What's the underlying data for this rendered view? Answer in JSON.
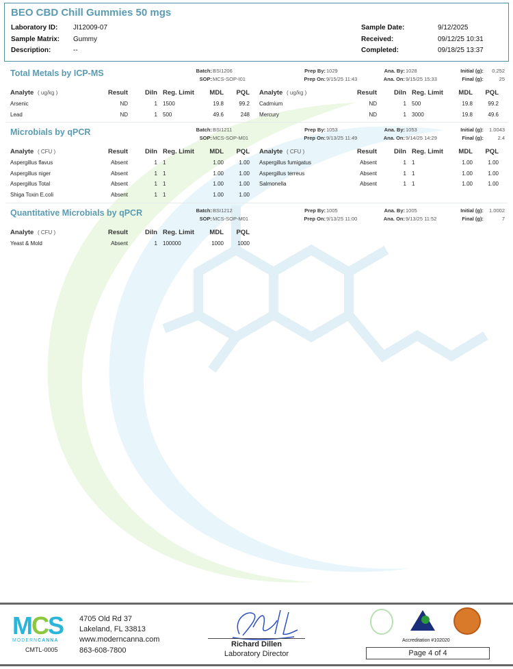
{
  "header": {
    "title": "BEO CBD Chill Gummies 50 mgs",
    "left": [
      {
        "label": "Laboratory ID:",
        "value": "JI12009-07"
      },
      {
        "label": "Sample Matrix:",
        "value": "Gummy"
      },
      {
        "label": "Description:",
        "value": "--"
      }
    ],
    "right": [
      {
        "label": "Sample Date:",
        "value": "9/12/2025"
      },
      {
        "label": "Received:",
        "value": "09/12/25 10:31"
      },
      {
        "label": "Completed:",
        "value": "09/18/25 13:37"
      }
    ]
  },
  "columns": {
    "analyte": "Analyte",
    "result": "Result",
    "diln": "Diln",
    "reg": "Reg. Limit",
    "mdl": "MDL",
    "pql": "PQL"
  },
  "meta_labels": {
    "batch": "Batch:",
    "sop": "SOP:",
    "prep_by": "Prep By:",
    "prep_on": "Prep On:",
    "ana_by": "Ana. By:",
    "ana_on": "Ana. On:",
    "initial": "Initial (g):",
    "final": "Final (g):"
  },
  "sections": [
    {
      "title": "Total Metals by ICP-MS",
      "unit": "( ug/kg )",
      "batch": "BSI1206",
      "sop": "MCS-SOP-I01",
      "prep_by": "1029",
      "prep_on": "9/15/25  11:43",
      "ana_by": "1028",
      "ana_on": "9/15/25  15:33",
      "initial": "0.252",
      "final": "25",
      "two_col": true,
      "rows": [
        [
          "Arsenic",
          "ND",
          "1",
          "1500",
          "19.8",
          "99.2"
        ],
        [
          "Lead",
          "ND",
          "1",
          "500",
          "49.6",
          "248"
        ],
        [
          "Cadmium",
          "ND",
          "1",
          "500",
          "19.8",
          "99.2"
        ],
        [
          "Mercury",
          "ND",
          "1",
          "3000",
          "19.8",
          "49.6"
        ]
      ],
      "left_count": 2
    },
    {
      "title": "Microbials by qPCR",
      "unit": "( CFU )",
      "batch": "BSI1211",
      "sop": "MCS-SOP-M01",
      "prep_by": "1053",
      "prep_on": "9/13/25  11:49",
      "ana_by": "1053",
      "ana_on": "9/14/25  14:29",
      "initial": "1.0043",
      "final": "2.4",
      "two_col": true,
      "rows": [
        [
          "Aspergillus flavus",
          "Absent",
          "1",
          "1",
          "1.00",
          "1.00"
        ],
        [
          "Aspergillus niger",
          "Absent",
          "1",
          "1",
          "1.00",
          "1.00"
        ],
        [
          "Aspergillus Total",
          "Absent",
          "1",
          "1",
          "1.00",
          "1.00"
        ],
        [
          "Shiga Toxin E.coli",
          "Absent",
          "1",
          "1",
          "1.00",
          "1.00"
        ],
        [
          "Aspergillus fumigatus",
          "Absent",
          "1",
          "1",
          "1.00",
          "1.00"
        ],
        [
          "Aspergillus terreus",
          "Absent",
          "1",
          "1",
          "1.00",
          "1.00"
        ],
        [
          "Salmonella",
          "Absent",
          "1",
          "1",
          "1.00",
          "1.00"
        ]
      ],
      "left_count": 4
    },
    {
      "title": "Quantitative Microbials by qPCR",
      "unit": "( CFU )",
      "batch": "BSI1212",
      "sop": "MCS-SOP-M01",
      "prep_by": "1005",
      "prep_on": "9/13/25  11:00",
      "ana_by": "1005",
      "ana_on": "9/13/25  11:52",
      "initial": "1.0002",
      "final": "7",
      "two_col": false,
      "rows": [
        [
          "Yeast & Mold",
          "Absent",
          "1",
          "100000",
          "1000",
          "1000"
        ]
      ],
      "left_count": 1
    }
  ],
  "footer": {
    "logo_text": "MCS MODERNCANNA LABS",
    "license": "CMTL-0005",
    "address1": "4705 Old Rd 37",
    "address2": "Lakeland, FL 33813",
    "website": "www.moderncanna.com",
    "phone": "863-608-7800",
    "signer": "Richard Dillen",
    "signer_title": "Laboratory Director",
    "accreditation": "Accreditation #102020",
    "page": "Page 4 of 4",
    "brand_color": "#2bb5d8",
    "accent_green": "#8dc63f"
  }
}
